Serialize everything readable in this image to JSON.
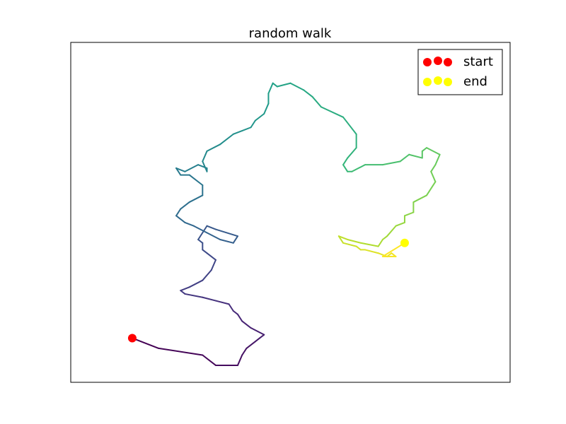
{
  "chart_data": {
    "type": "line",
    "title": "random walk",
    "xlabel": "",
    "ylabel": "",
    "ticks_visible": false,
    "grid": false,
    "legend": {
      "placement": "top-right",
      "entries": [
        {
          "label": "start",
          "color": "#ff0000"
        },
        {
          "label": "end",
          "color": "#ffff00"
        }
      ]
    },
    "colormap": "viridis",
    "series": [
      {
        "x": [
          0.14,
          0.2,
          0.3,
          0.33,
          0.38,
          0.39,
          0.4,
          0.42,
          0.43,
          0.44,
          0.41,
          0.39,
          0.38,
          0.37,
          0.36,
          0.33,
          0.3,
          0.26,
          0.25,
          0.27,
          0.3,
          0.32,
          0.33,
          0.31,
          0.3,
          0.3,
          0.29,
          0.3,
          0.31,
          0.33,
          0.38,
          0.37,
          0.34,
          0.31,
          0.28,
          0.26,
          0.24,
          0.25,
          0.27,
          0.3,
          0.3,
          0.27,
          0.25,
          0.24,
          0.26,
          0.29,
          0.31,
          0.31,
          0.3,
          0.31,
          0.34,
          0.37,
          0.39,
          0.41,
          0.42,
          0.44,
          0.45,
          0.45,
          0.46,
          0.47,
          0.5,
          0.53,
          0.55,
          0.57,
          0.62,
          0.65,
          0.65,
          0.63,
          0.62,
          0.63,
          0.64,
          0.67,
          0.71,
          0.75,
          0.77,
          0.8,
          0.8,
          0.81,
          0.84,
          0.83,
          0.82,
          0.83,
          0.81,
          0.78,
          0.78,
          0.76,
          0.76,
          0.74,
          0.72,
          0.71,
          0.7,
          0.66,
          0.63,
          0.61,
          0.62,
          0.65,
          0.66,
          0.67,
          0.7,
          0.72,
          0.73,
          0.74,
          0.71,
          0.76
        ],
        "y": [
          0.13,
          0.1,
          0.08,
          0.05,
          0.05,
          0.08,
          0.1,
          0.12,
          0.13,
          0.14,
          0.16,
          0.18,
          0.2,
          0.21,
          0.23,
          0.24,
          0.25,
          0.26,
          0.27,
          0.28,
          0.3,
          0.33,
          0.36,
          0.38,
          0.39,
          0.41,
          0.42,
          0.44,
          0.46,
          0.45,
          0.43,
          0.41,
          0.42,
          0.44,
          0.46,
          0.47,
          0.49,
          0.51,
          0.53,
          0.55,
          0.58,
          0.61,
          0.61,
          0.63,
          0.62,
          0.64,
          0.63,
          0.62,
          0.65,
          0.68,
          0.7,
          0.73,
          0.74,
          0.75,
          0.77,
          0.79,
          0.82,
          0.85,
          0.88,
          0.87,
          0.88,
          0.86,
          0.84,
          0.81,
          0.78,
          0.73,
          0.69,
          0.66,
          0.64,
          0.62,
          0.62,
          0.64,
          0.64,
          0.65,
          0.67,
          0.66,
          0.68,
          0.69,
          0.67,
          0.64,
          0.62,
          0.59,
          0.55,
          0.53,
          0.5,
          0.49,
          0.47,
          0.46,
          0.43,
          0.42,
          0.4,
          0.41,
          0.42,
          0.43,
          0.41,
          0.4,
          0.39,
          0.39,
          0.38,
          0.37,
          0.38,
          0.37,
          0.37,
          0.41
        ]
      }
    ],
    "start": {
      "x": 0.14,
      "y": 0.13
    },
    "end": {
      "x": 0.76,
      "y": 0.41
    },
    "xlim": [
      0,
      1
    ],
    "ylim": [
      0,
      1
    ]
  }
}
